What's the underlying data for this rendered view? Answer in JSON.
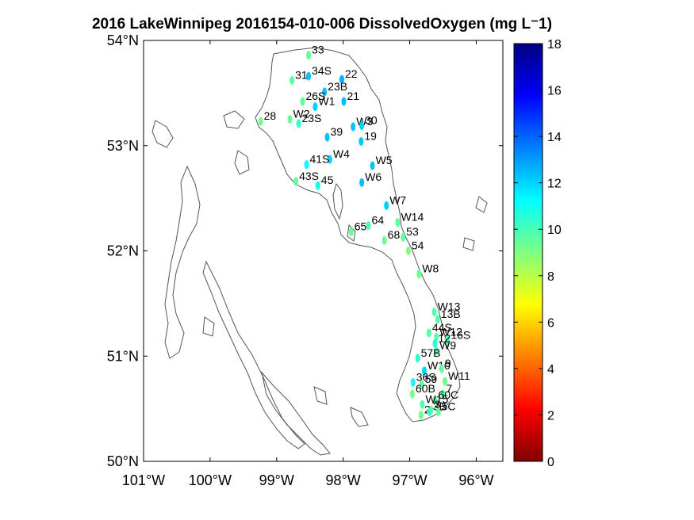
{
  "title": "2016 LakeWinnipeg 2016154-010-006 DissolvedOxygen (mg L⁻1)",
  "colors": {
    "land_outline": "#555555",
    "axis": "#000000",
    "label": "#000000"
  },
  "chart_data": {
    "type": "scatter",
    "title": "2016 LakeWinnipeg 2016154-010-006 DissolvedOxygen (mg L⁻1)",
    "xlabel": "",
    "ylabel": "",
    "xlim": [
      -101,
      -95.6
    ],
    "ylim": [
      50,
      54
    ],
    "xticks": [
      -101,
      -100,
      -99,
      -98,
      -97,
      -96
    ],
    "xtick_labels": [
      "101°W",
      "100°W",
      "99°W",
      "98°W",
      "97°W",
      "96°W"
    ],
    "yticks": [
      50,
      51,
      52,
      53,
      54
    ],
    "ytick_labels": [
      "50°N",
      "51°N",
      "52°N",
      "53°N",
      "54°N"
    ],
    "colorbar": {
      "range": [
        0,
        18
      ],
      "ticks": [
        0,
        2,
        4,
        6,
        8,
        10,
        12,
        14,
        16,
        18
      ],
      "colormap": "jet_reversed"
    },
    "stations": [
      {
        "name": "33",
        "lon": -98.52,
        "lat": 53.86,
        "value": 9.5
      },
      {
        "name": "34S",
        "lon": -98.52,
        "lat": 53.66,
        "value": 12.3
      },
      {
        "name": "22",
        "lon": -98.02,
        "lat": 53.63,
        "value": 12.6
      },
      {
        "name": "31",
        "lon": -98.77,
        "lat": 53.62,
        "value": 9.6
      },
      {
        "name": "23B",
        "lon": -98.28,
        "lat": 53.51,
        "value": 12.4
      },
      {
        "name": "26S",
        "lon": -98.61,
        "lat": 53.42,
        "value": 9.5
      },
      {
        "name": "21",
        "lon": -97.99,
        "lat": 53.42,
        "value": 12.4
      },
      {
        "name": "W1",
        "lon": -98.42,
        "lat": 53.37,
        "value": 12.1
      },
      {
        "name": "W2",
        "lon": -98.8,
        "lat": 53.25,
        "value": 9.4
      },
      {
        "name": "28",
        "lon": -99.24,
        "lat": 53.23,
        "value": 9.2
      },
      {
        "name": "23S",
        "lon": -98.67,
        "lat": 53.21,
        "value": 10.3
      },
      {
        "name": "W3",
        "lon": -97.85,
        "lat": 53.18,
        "value": 12.3
      },
      {
        "name": "30",
        "lon": -97.72,
        "lat": 53.19,
        "value": 12.1
      },
      {
        "name": "39",
        "lon": -98.24,
        "lat": 53.08,
        "value": 12.3
      },
      {
        "name": "19",
        "lon": -97.73,
        "lat": 53.04,
        "value": 12.2
      },
      {
        "name": "W4",
        "lon": -98.2,
        "lat": 52.87,
        "value": 12.0
      },
      {
        "name": "41S",
        "lon": -98.55,
        "lat": 52.82,
        "value": 11.2
      },
      {
        "name": "W5",
        "lon": -97.56,
        "lat": 52.81,
        "value": 12.3
      },
      {
        "name": "W6",
        "lon": -97.72,
        "lat": 52.65,
        "value": 12.4
      },
      {
        "name": "43S",
        "lon": -98.71,
        "lat": 52.66,
        "value": 9.5
      },
      {
        "name": "45",
        "lon": -98.38,
        "lat": 52.62,
        "value": 11.0
      },
      {
        "name": "W7",
        "lon": -97.35,
        "lat": 52.43,
        "value": 12.1
      },
      {
        "name": "W14",
        "lon": -97.18,
        "lat": 52.27,
        "value": 9.7
      },
      {
        "name": "64",
        "lon": -97.62,
        "lat": 52.24,
        "value": 9.9
      },
      {
        "name": "65",
        "lon": -97.88,
        "lat": 52.18,
        "value": 9.4
      },
      {
        "name": "53",
        "lon": -97.1,
        "lat": 52.13,
        "value": 9.4
      },
      {
        "name": "68",
        "lon": -97.38,
        "lat": 52.1,
        "value": 9.3
      },
      {
        "name": "54",
        "lon": -97.02,
        "lat": 52.0,
        "value": 9.0
      },
      {
        "name": "W8",
        "lon": -96.86,
        "lat": 51.78,
        "value": 9.3
      },
      {
        "name": "W13",
        "lon": -96.63,
        "lat": 51.42,
        "value": 9.8
      },
      {
        "name": "13B",
        "lon": -96.58,
        "lat": 51.35,
        "value": 9.7
      },
      {
        "name": "44S",
        "lon": -96.71,
        "lat": 51.22,
        "value": 9.8
      },
      {
        "name": "W12",
        "lon": -96.6,
        "lat": 51.18,
        "value": 9.5
      },
      {
        "name": "16S",
        "lon": -96.43,
        "lat": 51.15,
        "value": 9.9
      },
      {
        "name": "12",
        "lon": -96.62,
        "lat": 51.12,
        "value": 10.6
      },
      {
        "name": "W9",
        "lon": -96.6,
        "lat": 51.05,
        "value": 9.8
      },
      {
        "name": "57B",
        "lon": -96.88,
        "lat": 50.98,
        "value": 10.5
      },
      {
        "name": "W10",
        "lon": -96.78,
        "lat": 50.86,
        "value": 12.0
      },
      {
        "name": "9",
        "lon": -96.52,
        "lat": 50.88,
        "value": 9.5
      },
      {
        "name": "W11",
        "lon": -96.47,
        "lat": 50.76,
        "value": 9.3
      },
      {
        "name": "36S",
        "lon": -96.95,
        "lat": 50.75,
        "value": 10.9
      },
      {
        "name": "59",
        "lon": -96.82,
        "lat": 50.73,
        "value": 9.6
      },
      {
        "name": "60B",
        "lon": -96.96,
        "lat": 50.64,
        "value": 9.2
      },
      {
        "name": "7",
        "lon": -96.5,
        "lat": 50.64,
        "value": 9.6
      },
      {
        "name": "60C",
        "lon": -96.62,
        "lat": 50.58,
        "value": 9.5
      },
      {
        "name": "W15",
        "lon": -96.81,
        "lat": 50.54,
        "value": 9.9
      },
      {
        "name": "3",
        "lon": -96.68,
        "lat": 50.49,
        "value": 9.4
      },
      {
        "name": "2",
        "lon": -96.83,
        "lat": 50.44,
        "value": 9.2
      },
      {
        "name": "3B",
        "lon": -96.7,
        "lat": 50.47,
        "value": 10.1
      },
      {
        "name": "5C",
        "lon": -96.57,
        "lat": 50.47,
        "value": 9.5
      }
    ]
  }
}
